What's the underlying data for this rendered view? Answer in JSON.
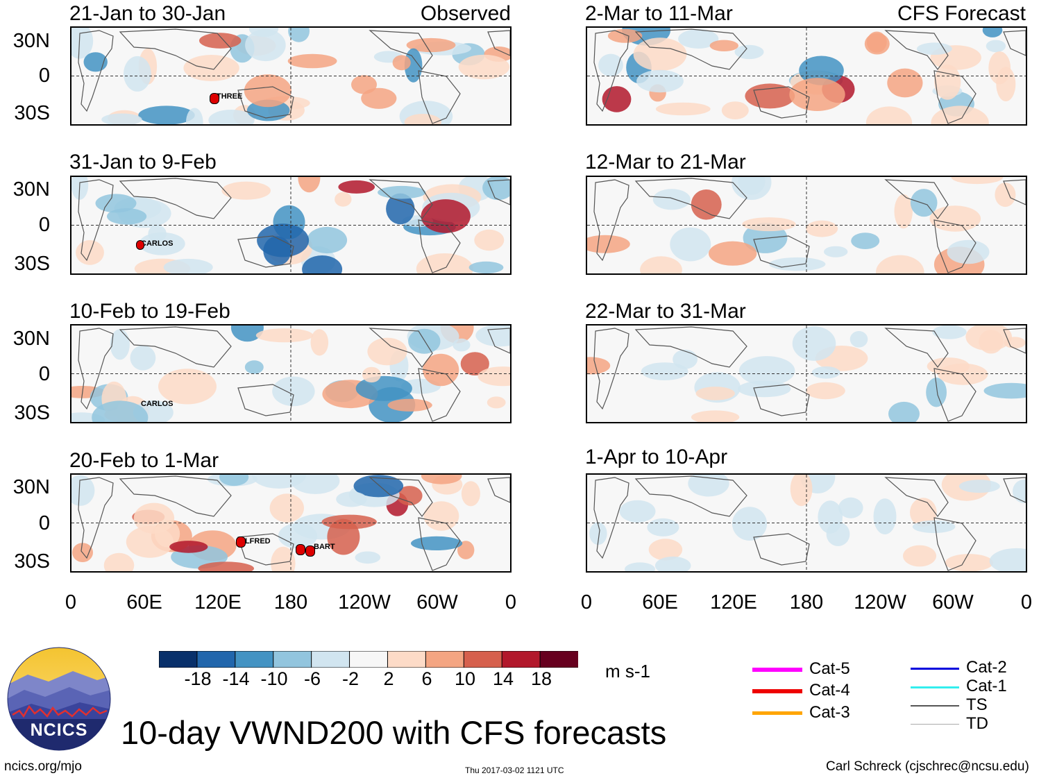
{
  "chart_data": {
    "type": "heatmap",
    "title": "10-day VWND200 with CFS forecasts",
    "units": "m s-1",
    "lat_ticks": [
      "30N",
      "0",
      "30S"
    ],
    "lon_ticks": [
      "0",
      "60E",
      "120E",
      "180",
      "120W",
      "60W",
      "0"
    ],
    "colorbar": {
      "labels": [
        "-18",
        "-14",
        "-10",
        "-6",
        "-2",
        "2",
        "6",
        "10",
        "14",
        "18"
      ],
      "colors": [
        "#08306b",
        "#2166ac",
        "#4393c3",
        "#92c5de",
        "#d1e5f0",
        "#f7f7f7",
        "#fddbc7",
        "#f4a582",
        "#d6604d",
        "#b2182b",
        "#67001f"
      ]
    },
    "panels": [
      {
        "period": "21-Jan to 30-Jan",
        "tag": "Observed",
        "storms": [
          "THREE"
        ]
      },
      {
        "period": "31-Jan to 9-Feb",
        "tag": "",
        "storms": [
          "CARLOS"
        ]
      },
      {
        "period": "10-Feb to 19-Feb",
        "tag": "",
        "storms": [
          "CARLOS"
        ]
      },
      {
        "period": "20-Feb to 1-Mar",
        "tag": "",
        "storms": [
          "ALFRED",
          "BART"
        ]
      },
      {
        "period": "2-Mar to 11-Mar",
        "tag": "CFS Forecast",
        "storms": []
      },
      {
        "period": "12-Mar to 21-Mar",
        "tag": "",
        "storms": []
      },
      {
        "period": "22-Mar to 31-Mar",
        "tag": "",
        "storms": []
      },
      {
        "period": "1-Apr to 10-Apr",
        "tag": "",
        "storms": []
      }
    ],
    "legend": [
      {
        "label": "Cat-5",
        "color": "#ff00ff"
      },
      {
        "label": "Cat-4",
        "color": "#ee0000"
      },
      {
        "label": "Cat-3",
        "color": "#ffa500"
      },
      {
        "label": "Cat-2",
        "color": "#0000dd"
      },
      {
        "label": "Cat-1",
        "color": "#33eeee"
      },
      {
        "label": "TS",
        "color": "#555555"
      },
      {
        "label": "TD",
        "color": "#aaaaaa"
      }
    ]
  },
  "footer": {
    "logo_text": "NCICS",
    "url": "ncics.org/mjo",
    "timestamp": "Thu 2017-03-02 1121 UTC",
    "author": "Carl Schreck (cjschrec@ncsu.edu)"
  }
}
